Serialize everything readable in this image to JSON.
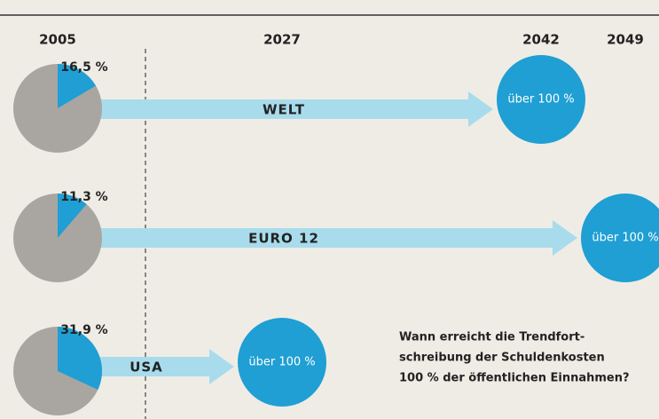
{
  "chart_data": {
    "type": "pie-timeline",
    "years": [
      "2005",
      "2027",
      "2042",
      "2049"
    ],
    "rows": [
      {
        "name": "WELT",
        "share": 16.5,
        "share_label": "16,5 %",
        "reached": "2042",
        "reached_label": "über 100 %"
      },
      {
        "name": "EURO 12",
        "share": 11.3,
        "share_label": "11,3 %",
        "reached": "2049",
        "reached_label": "über 100 %"
      },
      {
        "name": "USA",
        "share": 31.9,
        "share_label": "31,9 %",
        "reached": "2027",
        "reached_label": "über 100 %"
      }
    ],
    "pie_colors": [
      "#a9a6a2",
      "#1f9fd3"
    ],
    "arrow_color": "#a8dced",
    "caption": [
      "Wann erreicht die Trendfort-",
      "schreibung der Schuldenkosten",
      "100 % der öffentlichen Einnahmen?"
    ]
  }
}
